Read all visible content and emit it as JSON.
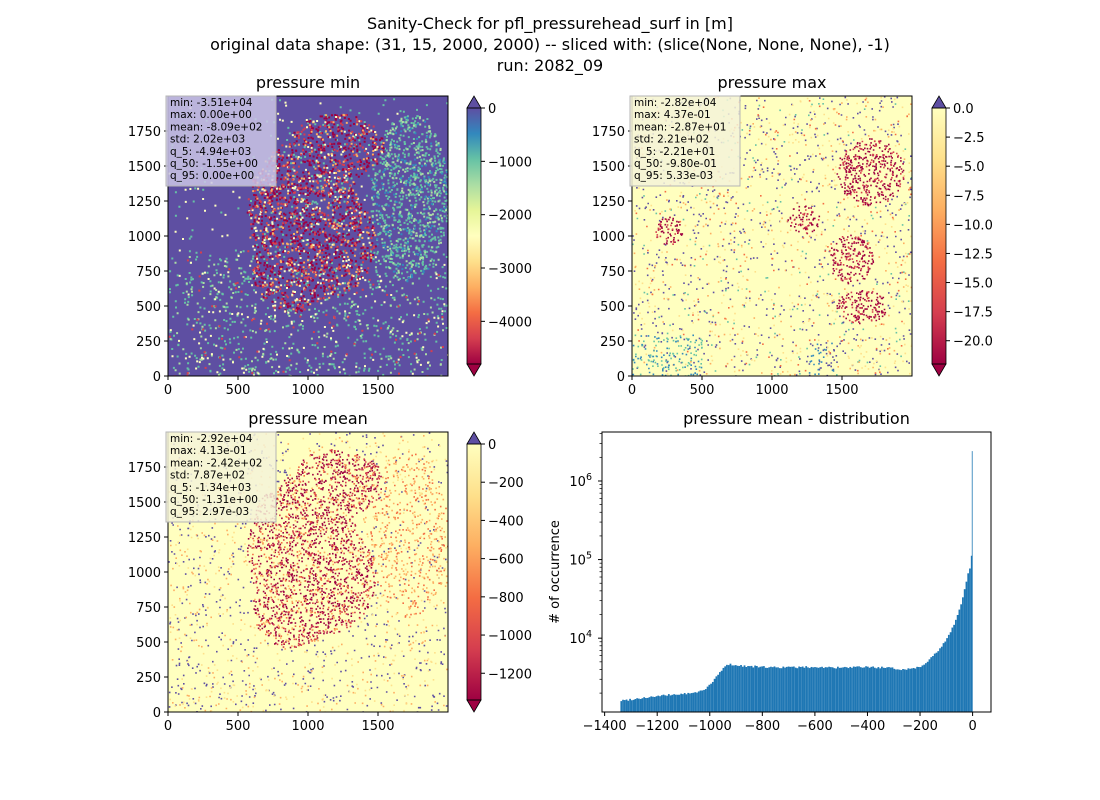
{
  "figure": {
    "title_lines": [
      "Sanity-Check for pfl_pressurehead_surf in [m]",
      "original data shape: (31, 15, 2000, 2000) -- sliced with: (slice(None, None, None), -1)",
      "run: 2082_09"
    ]
  },
  "colors": {
    "spectral": [
      "#9e0142",
      "#d53e4f",
      "#f46d43",
      "#fdae61",
      "#fee08b",
      "#ffffbf",
      "#e6f598",
      "#abdda4",
      "#66c2a5",
      "#3288bd",
      "#5e4fa2"
    ],
    "hist_bar": "#1f77b4",
    "map_background_low": "#5e4fa2",
    "map_background_high": "#ffffbf"
  },
  "chart_data": [
    {
      "type": "heatmap",
      "title": "pressure min",
      "xlim": [
        0,
        2000
      ],
      "ylim": [
        0,
        2000
      ],
      "xticks": [
        0,
        500,
        1000,
        1500
      ],
      "yticks": [
        0,
        250,
        500,
        750,
        1000,
        1250,
        1500,
        1750
      ],
      "colorbar": {
        "vmin": -4800,
        "vmax": 0,
        "ticks": [
          0,
          -1000,
          -2000,
          -3000,
          -4000
        ],
        "extend": "both"
      },
      "stats": [
        "min: -3.51e+04",
        "max: 0.00e+00",
        "mean: -8.09e+02",
        "std: 2.02e+03",
        "q_5: -4.94e+03",
        "q_50: -1.55e+00",
        "q_95: 0.00e+00"
      ]
    },
    {
      "type": "heatmap",
      "title": "pressure max",
      "xlim": [
        0,
        2000
      ],
      "ylim": [
        0,
        2000
      ],
      "xticks": [
        0,
        500,
        1000,
        1500
      ],
      "yticks": [
        0,
        250,
        500,
        750,
        1000,
        1250,
        1500,
        1750
      ],
      "colorbar": {
        "vmin": -22,
        "vmax": 0,
        "ticks": [
          "0.0",
          "-2.5",
          "-5.0",
          "-7.5",
          "-10.0",
          "-12.5",
          "-15.0",
          "-17.5",
          "-20.0"
        ],
        "extend": "both"
      },
      "stats": [
        "min: -2.82e+04",
        "max: 4.37e-01",
        "mean: -2.87e+01",
        "std: 2.21e+02",
        "q_5: -2.21e+01",
        "q_50: -9.80e-01",
        "q_95: 5.33e-03"
      ]
    },
    {
      "type": "heatmap",
      "title": "pressure mean",
      "xlim": [
        0,
        2000
      ],
      "ylim": [
        0,
        2000
      ],
      "xticks": [
        0,
        500,
        1000,
        1500
      ],
      "yticks": [
        0,
        250,
        500,
        750,
        1000,
        1250,
        1500,
        1750
      ],
      "colorbar": {
        "vmin": -1340,
        "vmax": 0,
        "ticks": [
          0,
          -200,
          -400,
          -600,
          -800,
          -1000,
          -1200
        ],
        "extend": "both"
      },
      "stats": [
        "min: -2.92e+04",
        "max: 4.13e-01",
        "mean: -2.42e+02",
        "std: 7.87e+02",
        "q_5: -1.34e+03",
        "q_50: -1.31e+00",
        "q_95: 2.97e-03"
      ]
    },
    {
      "type": "bar",
      "title": "pressure mean - distribution",
      "ylabel": "# of occurrence",
      "yscale": "log",
      "xlim": [
        -1410,
        70
      ],
      "ylim": [
        1150,
        4200000
      ],
      "xticks": [
        -1400,
        -1200,
        -1000,
        -800,
        -600,
        -400,
        -200,
        0
      ],
      "yticks": [
        {
          "value": 10000,
          "base": "10",
          "exp": "4"
        },
        {
          "value": 100000,
          "base": "10",
          "exp": "5"
        },
        {
          "value": 1000000,
          "base": "10",
          "exp": "6"
        }
      ],
      "bin_width": 6.7,
      "curve": [
        [
          -1340,
          1600
        ],
        [
          -1250,
          1750
        ],
        [
          -1150,
          1900
        ],
        [
          -1060,
          2000
        ],
        [
          -1030,
          2150
        ],
        [
          -1000,
          2500
        ],
        [
          -975,
          3200
        ],
        [
          -955,
          3900
        ],
        [
          -940,
          4400
        ],
        [
          -925,
          4700
        ],
        [
          -900,
          4500
        ],
        [
          -800,
          4300
        ],
        [
          -700,
          4250
        ],
        [
          -600,
          4300
        ],
        [
          -500,
          4200
        ],
        [
          -400,
          4300
        ],
        [
          -330,
          4200
        ],
        [
          -260,
          4000
        ],
        [
          -200,
          4300
        ],
        [
          -160,
          5500
        ],
        [
          -120,
          7500
        ],
        [
          -90,
          11000
        ],
        [
          -60,
          18000
        ],
        [
          -40,
          30000
        ],
        [
          -25,
          50000
        ],
        [
          -15,
          70000
        ],
        [
          -8,
          80000
        ],
        [
          -4,
          60000
        ],
        [
          0,
          2400000
        ]
      ]
    }
  ]
}
